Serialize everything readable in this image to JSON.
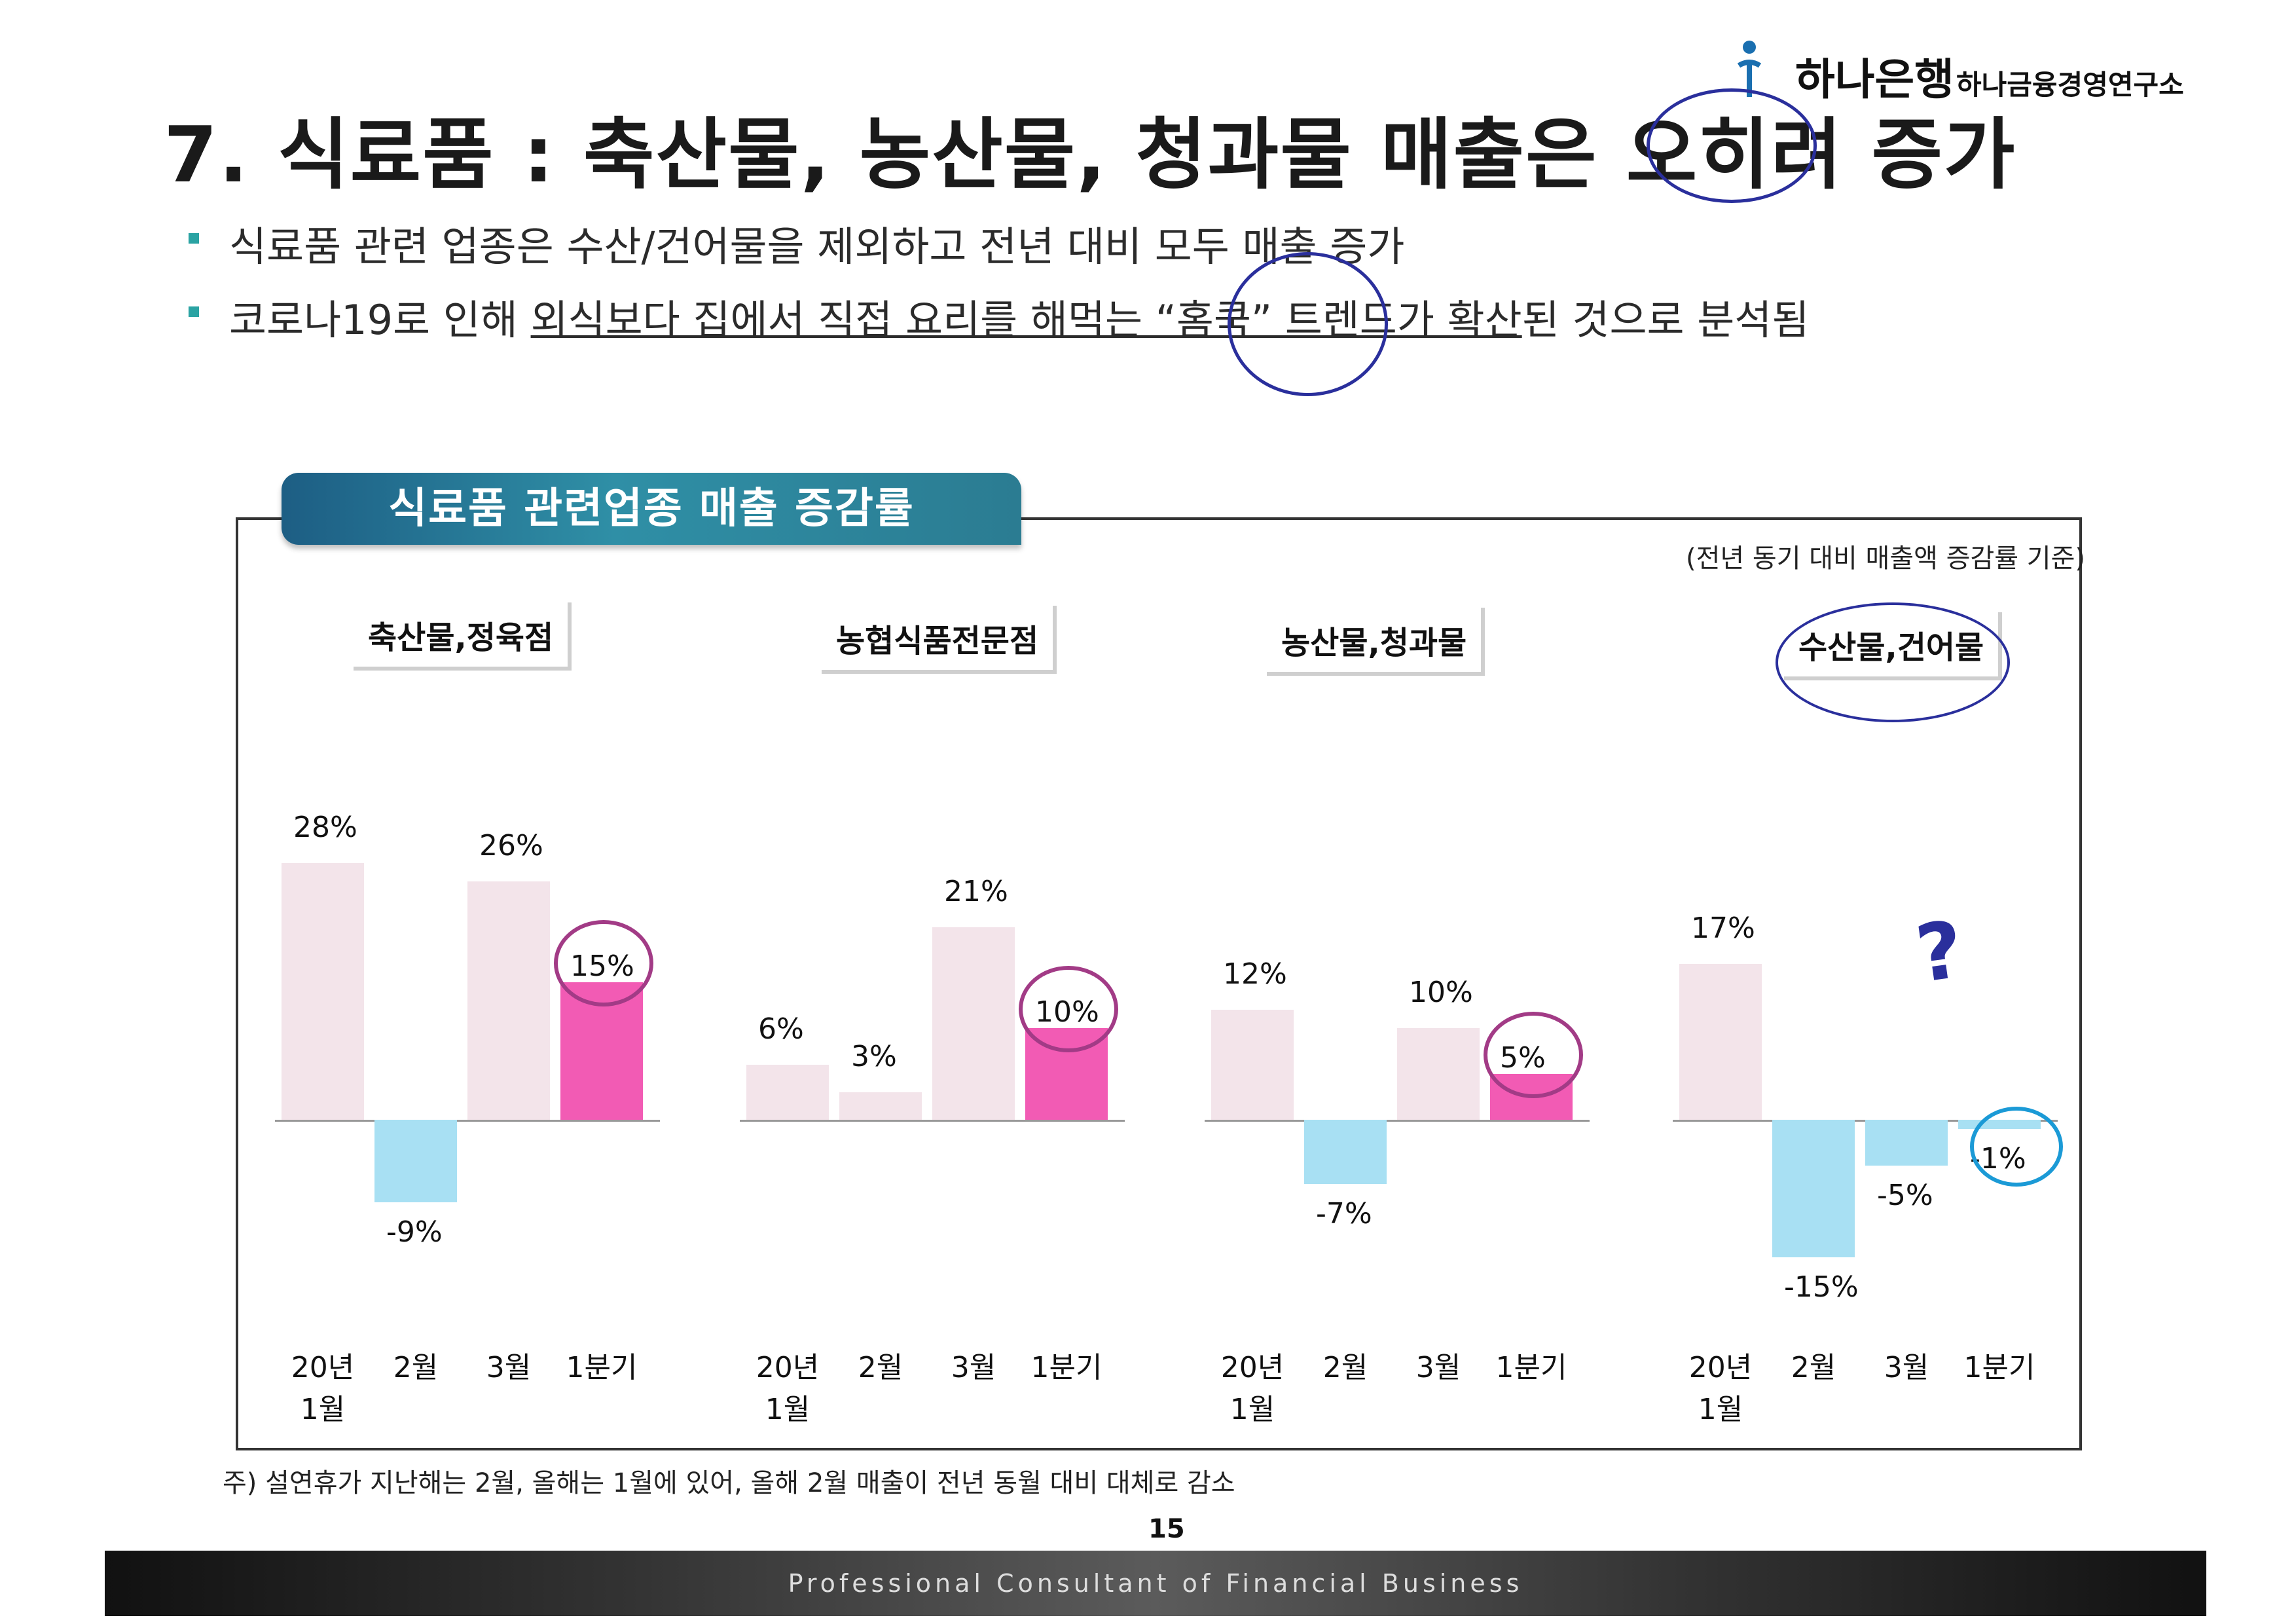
{
  "header": {
    "bank": "하나은행",
    "institute": "하나금융경영연구소"
  },
  "title": "7. 식료품 : 축산물, 농산물, 청과물 매출은 오히려 증가",
  "bullets": {
    "b1": "식료품 관련 업종은 수산/건어물을 제외하고 전년 대비 모두 매출 증가",
    "b2_pre": "코로나19로 인해 ",
    "b2_underlined": "외식보다 집에서 직접 요리를 해먹는 “홈쿡” 트렌드가 확산",
    "b2_post": "된 것으로 분석됨"
  },
  "chart_title": "식료품 관련업종 매출 증감률",
  "basis": "(전년 동기 대비 매출액 증감률 기준)",
  "note": "주) 설연휴가 지난해는 2월, 올해는 1월에 있어, 올해 2월 매출이 전년 동월 대비 대체로 감소",
  "page_number": "15",
  "footer": "Professional Consultant of Financial Business",
  "question_mark": "?",
  "colors": {
    "bar_regular": "#f3e4ea",
    "bar_highlight": "#f25bb4",
    "bar_negative": "#a8e0f3",
    "banner": "#2a7c96",
    "logo_blue": "#1a6fb0"
  },
  "chart_data": {
    "type": "bar",
    "unit": "%",
    "groups": [
      {
        "name": "축산물,정육점",
        "labels": [
          "20년 1월",
          "2월",
          "3월",
          "1분기"
        ],
        "values": [
          28,
          -9,
          26,
          15
        ],
        "value_labels": [
          "28%",
          "-9%",
          "26%",
          "15%"
        ]
      },
      {
        "name": "농협식품전문점",
        "labels": [
          "20년 1월",
          "2월",
          "3월",
          "1분기"
        ],
        "values": [
          6,
          3,
          21,
          10
        ],
        "value_labels": [
          "6%",
          "3%",
          "21%",
          "10%"
        ]
      },
      {
        "name": "농산물,청과물",
        "labels": [
          "20년 1월",
          "2월",
          "3월",
          "1분기"
        ],
        "values": [
          12,
          -7,
          10,
          5
        ],
        "value_labels": [
          "12%",
          "-7%",
          "10%",
          "5%"
        ]
      },
      {
        "name": "수산물,건어물",
        "labels": [
          "20년 1월",
          "2월",
          "3월",
          "1분기"
        ],
        "values": [
          17,
          -15,
          -5,
          -1
        ],
        "value_labels": [
          "17%",
          "-15%",
          "-5%",
          "-1%"
        ]
      }
    ],
    "highlight_index": 3,
    "xlabel_lines": [
      [
        "20년",
        "1월"
      ],
      [
        "2월"
      ],
      [
        "3월"
      ],
      [
        "1분기"
      ]
    ]
  }
}
